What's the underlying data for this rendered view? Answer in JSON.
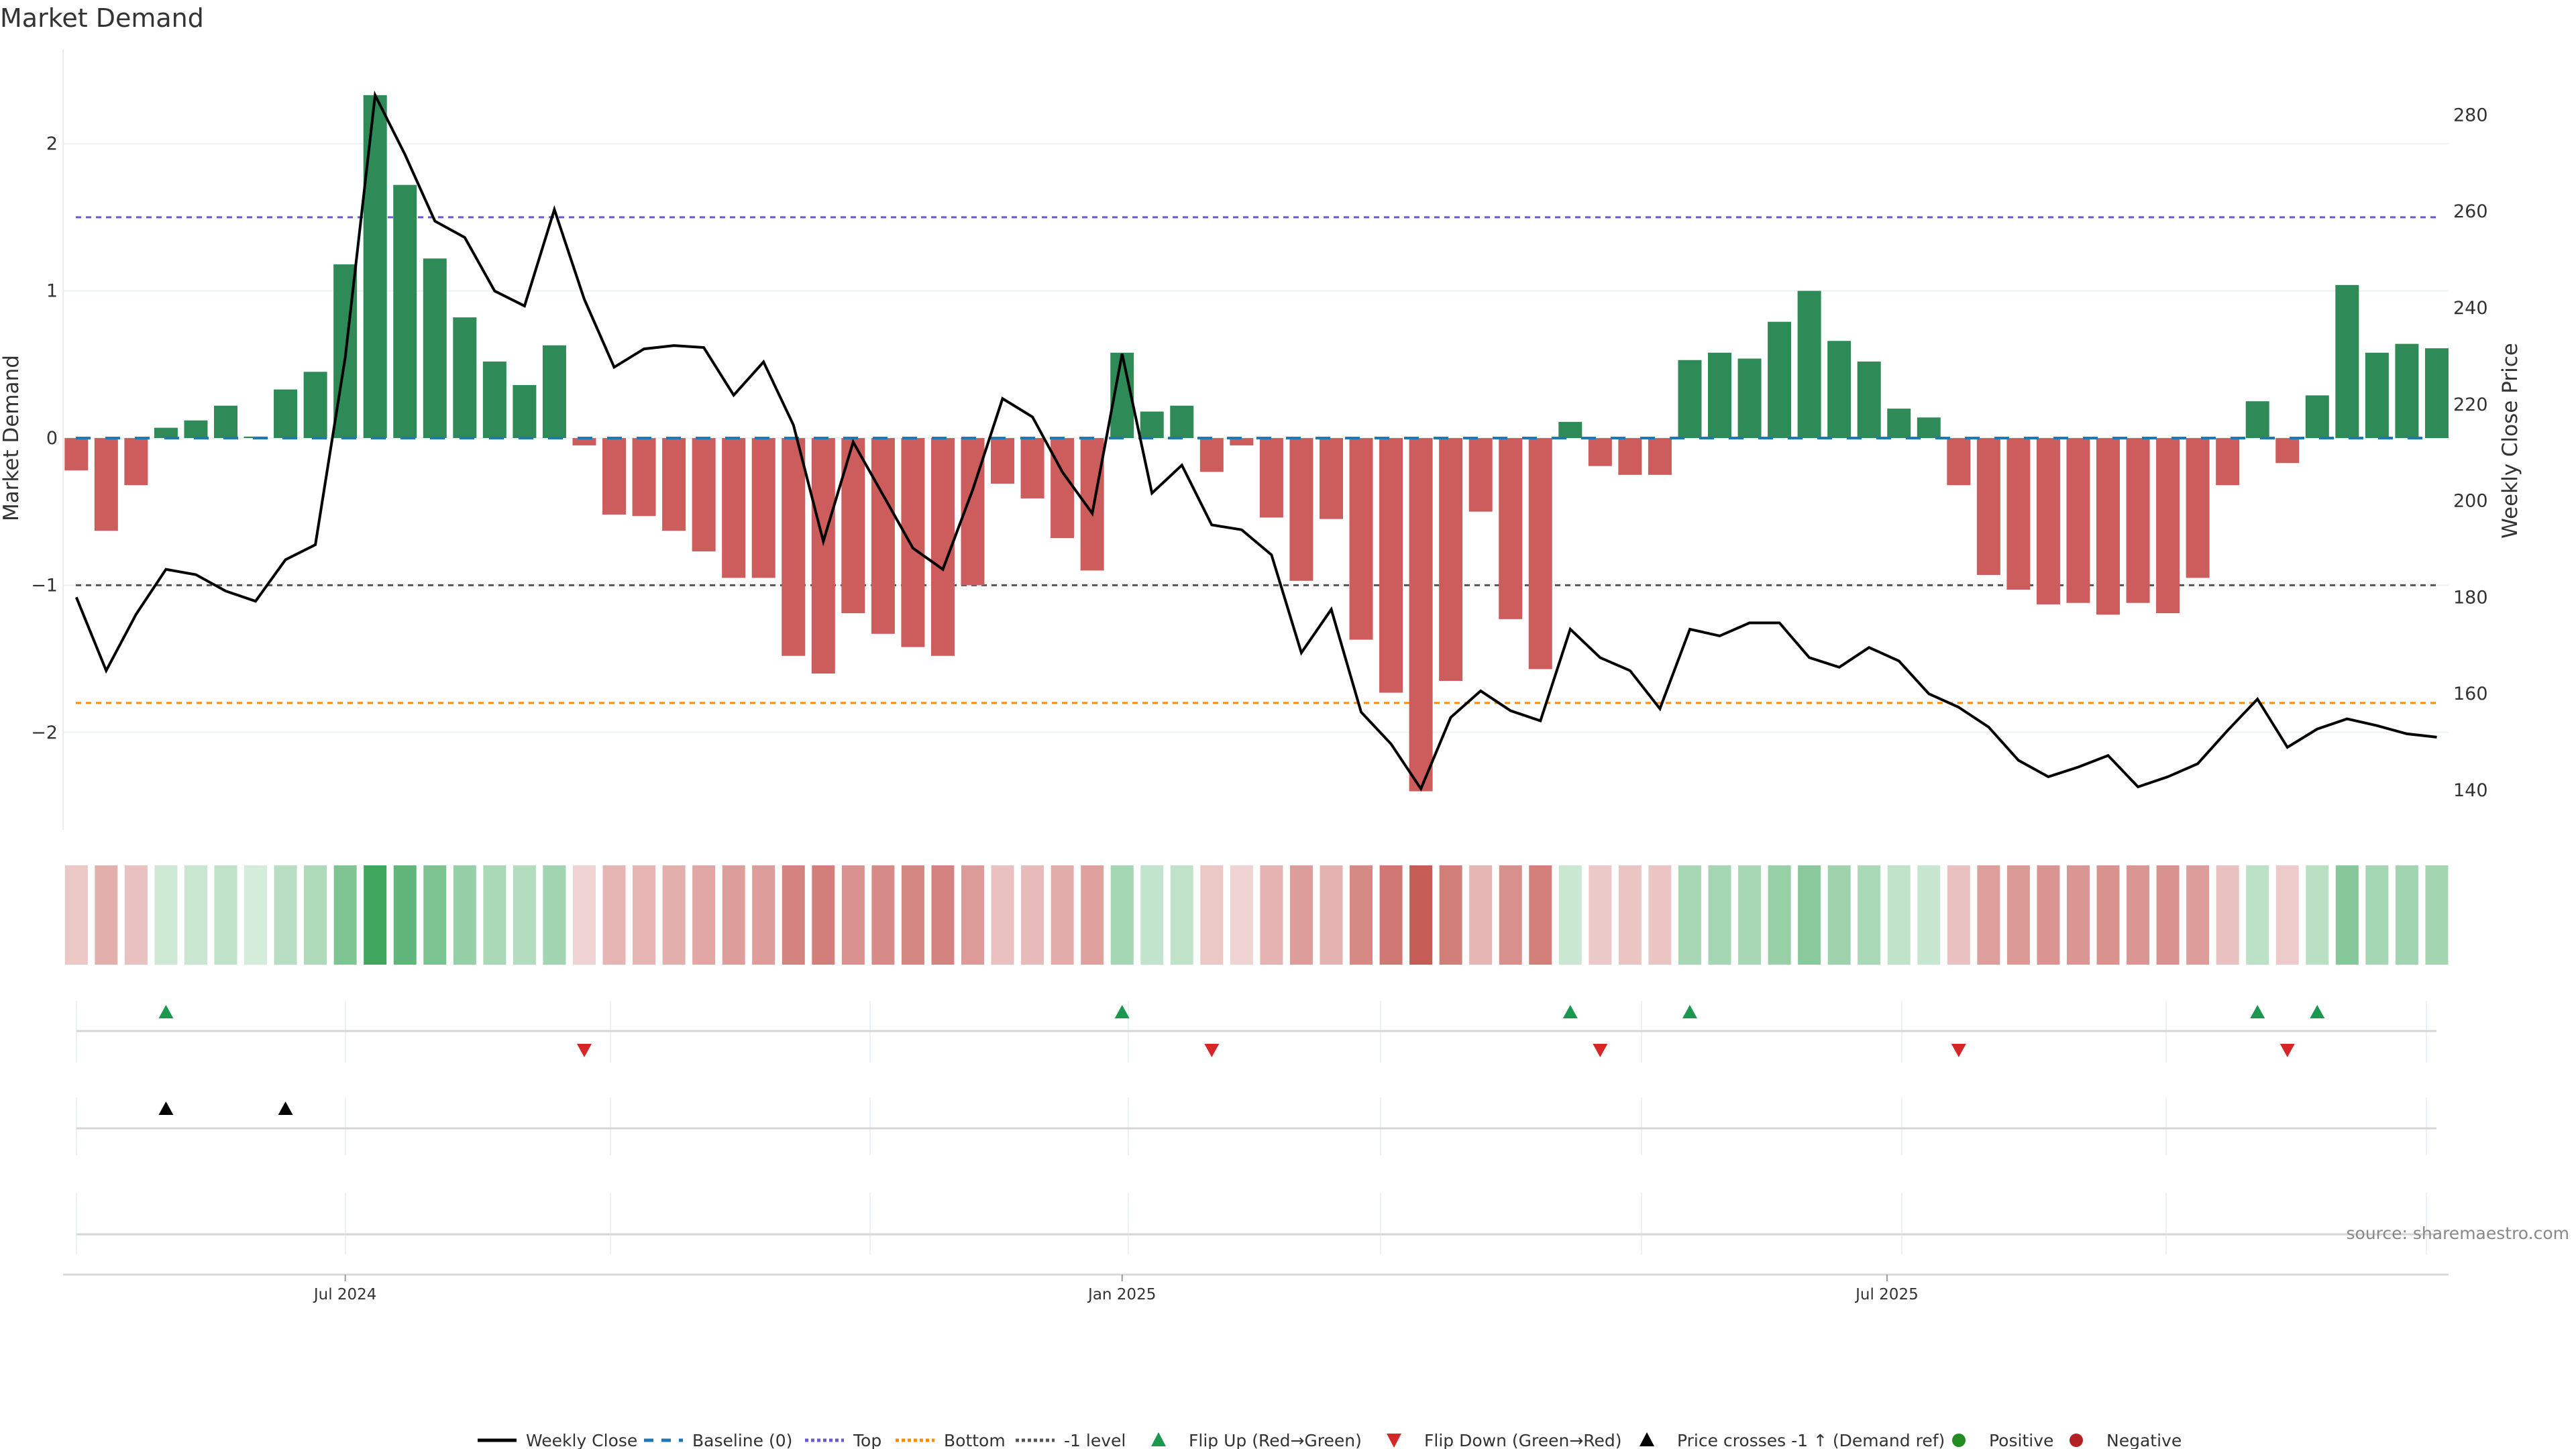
{
  "title": "Market Demand",
  "source": "source: sharemaestro.com",
  "colors": {
    "positive_bar": "#2e8b57",
    "negative_bar": "#cd5c5c",
    "price_line": "#000000",
    "baseline": "#1f77b4",
    "top": "#6a5acd",
    "bottom": "#ff8c00",
    "minus1": "#555555",
    "flip_up": "#1a9850",
    "flip_down": "#d62728",
    "price_cross": "#000000",
    "positive_dot": "#228b22",
    "negative_dot": "#b22222"
  },
  "chart_data": {
    "type": "bar",
    "title": "Market Demand",
    "ylabel": "Market Demand",
    "y2label": "Weekly Close Price",
    "ylim": [
      -2.7,
      2.6
    ],
    "y2lim": [
      134,
      289
    ],
    "yticks": [
      2,
      1,
      0,
      -1,
      -2
    ],
    "ytick_labels": [
      "2",
      "1",
      "0",
      "−1",
      "−2"
    ],
    "y2ticks": [
      280,
      260,
      240,
      220,
      200,
      180,
      160,
      140
    ],
    "y2tick_labels": [
      "280",
      "260",
      "240",
      "220",
      "200",
      "180",
      "160",
      "140"
    ],
    "xtick_labels": [
      "Jul 2024",
      "Jan 2025",
      "Jul 2025"
    ],
    "xtick_weeks": [
      9,
      35,
      60.6
    ],
    "grid": true,
    "reference_lines": {
      "baseline": 0,
      "top": 1.5,
      "bottom": -1.8,
      "minus1": -1
    },
    "series": [
      {
        "name": "Market Demand",
        "type": "bar",
        "values": [
          -0.22,
          -0.63,
          -0.32,
          0.07,
          0.12,
          0.22,
          0.01,
          0.33,
          0.45,
          1.18,
          2.33,
          1.72,
          1.22,
          0.82,
          0.52,
          0.36,
          0.63,
          -0.05,
          -0.52,
          -0.53,
          -0.63,
          -0.77,
          -0.95,
          -0.95,
          -1.48,
          -1.6,
          -1.19,
          -1.33,
          -1.42,
          -1.48,
          -1.0,
          -0.31,
          -0.41,
          -0.68,
          -0.9,
          0.58,
          0.18,
          0.22,
          -0.23,
          -0.05,
          -0.54,
          -0.97,
          -0.55,
          -1.37,
          -1.73,
          -2.4,
          -1.65,
          -0.5,
          -1.23,
          -1.57,
          0.11,
          -0.19,
          -0.25,
          -0.25,
          0.53,
          0.58,
          0.54,
          0.79,
          1.0,
          0.66,
          0.52,
          0.2,
          0.14,
          -0.32,
          -0.93,
          -1.03,
          -1.13,
          -1.12,
          -1.2,
          -1.12,
          -1.19,
          -0.95,
          -0.32,
          0.25,
          -0.17,
          0.29,
          1.04,
          0.58,
          0.64,
          0.61
        ]
      },
      {
        "name": "Weekly Close",
        "type": "line",
        "values": [
          180,
          164.8,
          176.5,
          185.8,
          184.7,
          181.3,
          179.2,
          187.8,
          190.9,
          229.8,
          284.1,
          271.8,
          258,
          254.6,
          243.5,
          240.4,
          260.4,
          241.8,
          227.7,
          231.5,
          232.2,
          231.8,
          221.9,
          228.8,
          215.7,
          191.6,
          212.2,
          201.2,
          190.2,
          185.8,
          202.3,
          221.2,
          217.4,
          206,
          197.4,
          230.5,
          201.6,
          207.4,
          195,
          194,
          188.8,
          168.5,
          177.5,
          156.2,
          149.6,
          140.3,
          155.1,
          160.6,
          156.5,
          154.4,
          173.4,
          167.5,
          164.8,
          156.9,
          173.4,
          172,
          174.7,
          174.7,
          167.5,
          165.5,
          169.6,
          166.8,
          160,
          157.2,
          153.1,
          146.2,
          142.8,
          144.8,
          147.2,
          140.7,
          142.8,
          145.5,
          152.4,
          158.9,
          148.9,
          152.7,
          154.8,
          153.4,
          151.7,
          151
        ]
      }
    ],
    "flip_up_weeks": [
      3,
      35,
      50,
      54,
      73,
      75
    ],
    "flip_down_weeks": [
      17,
      38,
      51,
      63,
      74
    ],
    "price_cross_weeks": [
      3,
      7
    ],
    "legend": [
      "Weekly Close",
      "Baseline (0)",
      "Top",
      "Bottom",
      "-1 level",
      "Flip Up (Red→Green)",
      "Flip Down (Green→Red)",
      "Price crosses -1 ↑ (Demand ref)",
      "Positive",
      "Negative"
    ],
    "legend_position": "bottom-center"
  }
}
